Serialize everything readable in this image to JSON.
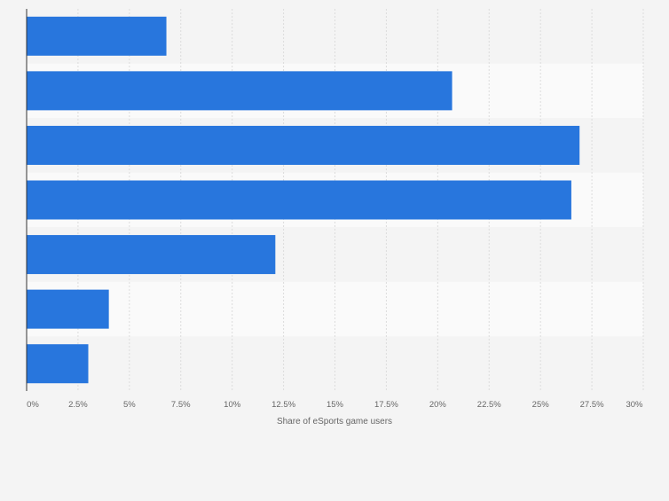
{
  "chart_data": {
    "type": "bar",
    "orientation": "horizontal",
    "categories": [
      "",
      "",
      "",
      "",
      "",
      "",
      ""
    ],
    "values": [
      6.8,
      20.7,
      26.9,
      26.5,
      12.1,
      4.0,
      3.0
    ],
    "xlabel": "Share of eSports game users",
    "xlim": [
      0,
      30
    ],
    "ticks": [
      0,
      2.5,
      5,
      7.5,
      10,
      12.5,
      15,
      17.5,
      20,
      22.5,
      25,
      27.5,
      30
    ],
    "tick_labels": [
      "0%",
      "2.5%",
      "5%",
      "7.5%",
      "10%",
      "12.5%",
      "15%",
      "17.5%",
      "20%",
      "22.5%",
      "25%",
      "27.5%",
      "30%"
    ],
    "grid": true,
    "bar_color": "#2876dd",
    "band_colors": [
      "#f4f4f4",
      "#fafafa"
    ],
    "gridline_color": "#dcdcdc",
    "axis_color": "#333333",
    "label_color": "#666666"
  }
}
